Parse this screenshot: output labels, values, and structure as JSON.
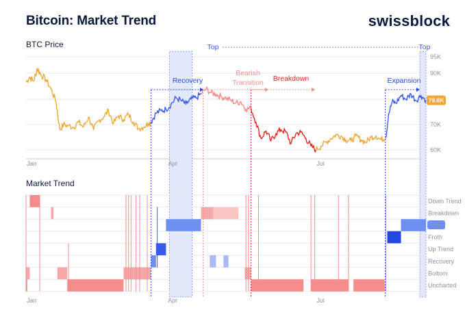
{
  "header": {
    "title": "Bitcoin: Market Trend",
    "brand": "swissblock"
  },
  "panels": {
    "price_label": "BTC Price",
    "trend_label": "Market Trend"
  },
  "price_badge": "79.6K",
  "colors": {
    "orange": "#f0a73a",
    "red": "#e3261f",
    "salmon": "#f58c8c",
    "pink": "#f6a8a8",
    "light_red": "#f8c7c4",
    "blue": "#3a5be8",
    "mid_blue": "#6f8ef2",
    "light_blue": "#a9baf6",
    "top_band": "#dfe6fb",
    "dark_blue": "#2347e0",
    "grid": "#e6e8ee"
  },
  "annotations": [
    {
      "label": "Top",
      "color": "#3a5be8"
    },
    {
      "label": "Top",
      "color": "#3a5be8"
    },
    {
      "label": "Recovery",
      "color": "#2347e0"
    },
    {
      "label": "Bearish",
      "color": "#f58c8c"
    },
    {
      "label": "Transition",
      "color": "#f58c8c"
    },
    {
      "label": "Breakdown",
      "color": "#e3261f"
    },
    {
      "label": "Expansion",
      "color": "#2347e0"
    }
  ],
  "chart_data": [
    {
      "type": "line",
      "title": "BTC Price",
      "x_ticks": [
        "Jan",
        "Apr",
        "Jul"
      ],
      "y_ticks": [
        "95K",
        "90K",
        "80K",
        "70K",
        "60K"
      ],
      "last_value": "79.6K",
      "ylim": [
        57,
        96
      ],
      "series_segments": [
        {
          "regime": "Uncharted/Bottom",
          "color": "#f0a73a",
          "x": [
            0,
            3,
            6,
            9,
            12,
            16,
            20,
            24,
            27,
            30,
            34,
            38,
            42,
            46,
            50,
            54,
            58,
            62,
            66,
            70,
            74,
            78,
            82,
            86,
            90,
            94,
            98,
            100
          ],
          "y": [
            86.5,
            88.5,
            87.0,
            91.5,
            89.5,
            87.5,
            84.0,
            79.0,
            68.0,
            70.0,
            69.5,
            69.0,
            71.0,
            69.0,
            73.0,
            68.0,
            71.5,
            73.0,
            75.5,
            70.5,
            73.5,
            72.0,
            74.0,
            71.0,
            68.5,
            69.0,
            70.5,
            71.0
          ]
        },
        {
          "regime": "Recovery/Up Trend",
          "color": "#3a5be8",
          "x": [
            100,
            104,
            108,
            112,
            116,
            120,
            124,
            128,
            132,
            136,
            140
          ],
          "y": [
            71.0,
            74.5,
            75.5,
            76.0,
            78.0,
            80.5,
            79.5,
            78.0,
            80.0,
            80.5,
            82.0
          ]
        },
        {
          "regime": "Bearish Transition",
          "color": "#f58c8c",
          "x": [
            140,
            144,
            148,
            152,
            156,
            160,
            164,
            168,
            172,
            176,
            180
          ],
          "y": [
            82.0,
            84.0,
            82.5,
            82.0,
            81.0,
            80.5,
            79.5,
            78.5,
            79.0,
            76.0,
            76.5
          ]
        },
        {
          "regime": "Breakdown",
          "color": "#e3261f",
          "x": [
            180,
            184,
            188,
            192,
            196,
            200,
            204,
            208,
            212,
            216,
            220,
            224,
            228,
            232
          ],
          "y": [
            76.5,
            71.0,
            64.5,
            67.5,
            63.5,
            66.5,
            68.0,
            67.0,
            62.5,
            66.5,
            67.0,
            64.5,
            61.5,
            60.0
          ]
        },
        {
          "regime": "Bottom",
          "color": "#f0a73a",
          "x": [
            232,
            236,
            240,
            244,
            248,
            252,
            256,
            260,
            264,
            268,
            272,
            276,
            280,
            284,
            288
          ],
          "y": [
            60.0,
            61.5,
            63.0,
            64.5,
            66.0,
            65.5,
            64.0,
            63.5,
            65.5,
            64.0,
            63.0,
            65.0,
            65.5,
            64.0,
            65.0
          ]
        },
        {
          "regime": "Expansion/Top",
          "color": "#3a5be8",
          "x": [
            288,
            290,
            293,
            296,
            300,
            304,
            308,
            312,
            316,
            320
          ],
          "y": [
            65.0,
            74.0,
            79.0,
            78.5,
            81.5,
            80.0,
            82.0,
            79.5,
            81.5,
            79.6
          ]
        }
      ]
    },
    {
      "type": "heatmap",
      "title": "Market Trend",
      "categories": [
        "Down Trend",
        "Breakdown",
        "Top",
        "Froth",
        "Up Trend",
        "Recovery",
        "Bottom",
        "Uncharted"
      ],
      "highlighted_category": "Top",
      "x_ticks": [
        "Jan",
        "Apr",
        "Jul"
      ]
    }
  ]
}
